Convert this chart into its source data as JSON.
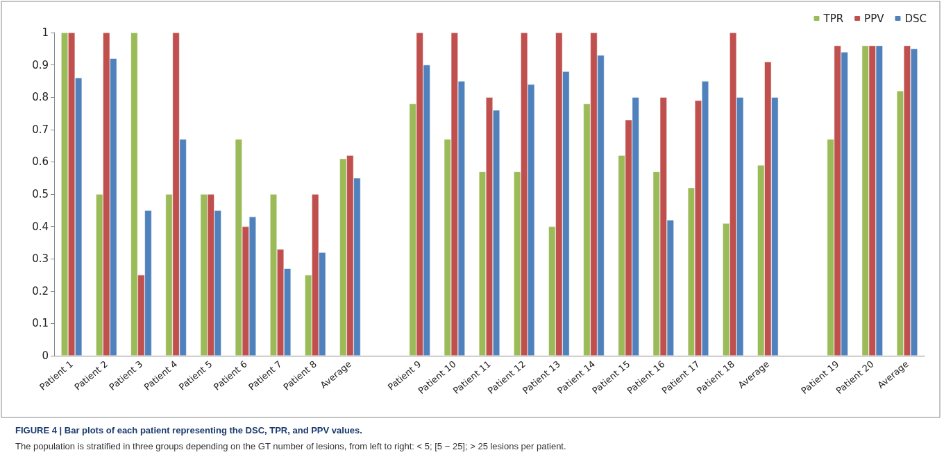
{
  "chart_data": {
    "type": "bar",
    "categories": [
      "Patient 1",
      "Patient 2",
      "Patient 3",
      "Patient 4",
      "Patient 5",
      "Patient 6",
      "Patient 7",
      "Patient 8",
      "Average",
      null,
      "Patient 9",
      "Patient 10",
      "Patient 11",
      "Patient 12",
      "Patient 13",
      "Patient 14",
      "Patient 15",
      "Patient 16",
      "Patient 17",
      "Patient 18",
      "Average",
      null,
      "Patient 19",
      "Patient 20",
      "Average"
    ],
    "series": [
      {
        "name": "TPR",
        "color": "#9bbb59",
        "values": [
          1,
          0.5,
          1,
          0.5,
          0.5,
          0.67,
          0.5,
          0.25,
          0.61,
          null,
          0.78,
          0.67,
          0.57,
          0.57,
          0.4,
          0.78,
          0.62,
          0.57,
          0.52,
          0.41,
          0.59,
          null,
          0.67,
          0.96,
          0.82
        ]
      },
      {
        "name": "PPV",
        "color": "#c0504d",
        "values": [
          1,
          1,
          0.25,
          1,
          0.5,
          0.4,
          0.33,
          0.5,
          0.62,
          null,
          1,
          1,
          0.8,
          1,
          1,
          1,
          0.73,
          0.8,
          0.79,
          1,
          0.91,
          null,
          0.96,
          0.96,
          0.96
        ]
      },
      {
        "name": "DSC",
        "color": "#4f81bd",
        "values": [
          0.86,
          0.92,
          0.45,
          0.67,
          0.45,
          0.43,
          0.27,
          0.32,
          0.55,
          null,
          0.9,
          0.85,
          0.76,
          0.84,
          0.88,
          0.93,
          0.8,
          0.42,
          0.85,
          0.8,
          0.8,
          null,
          0.94,
          0.96,
          0.95
        ]
      }
    ],
    "ylim": [
      0,
      1
    ],
    "yticks": [
      0,
      0.1,
      0.2,
      0.3,
      0.4,
      0.5,
      0.6,
      0.7,
      0.8,
      0.9,
      1
    ],
    "grid": false,
    "legend": "top right",
    "annotations": [
      "FIGURE 4 | Bar plots of each patient representing the DSC, TPR, and PPV values.",
      "The population is stratified in three groups depending on the GT number of lesions, from left to right: < 5; [5 − 25]; > 25 lesions per patient."
    ]
  }
}
